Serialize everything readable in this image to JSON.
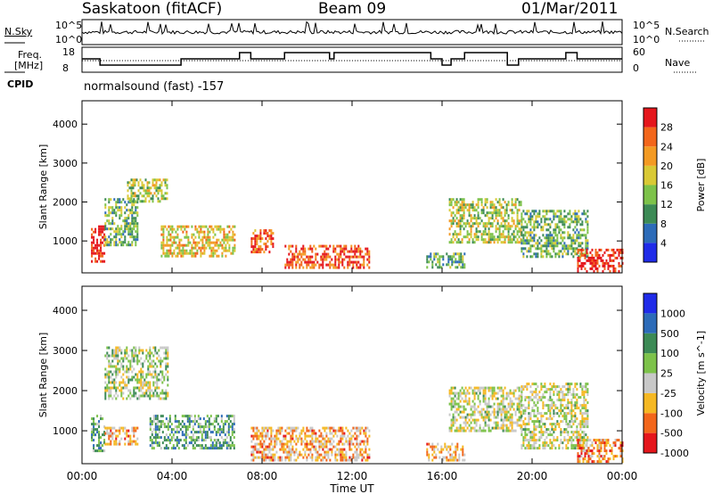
{
  "header": {
    "station": "Saskatoon (fitACF)",
    "beam": "Beam 09",
    "date": "01/Mar/2011"
  },
  "top_panels": {
    "nsky_label": "N.Sky",
    "nsearch_label": "N.Search",
    "noise_ticks": [
      "10^5",
      "10^0"
    ],
    "freq_label_line1": "Freq.",
    "freq_label_line2": "[MHz]",
    "freq_ticks": [
      "18",
      "8"
    ],
    "nave_label": "Nave",
    "nave_ticks": [
      "60",
      "0"
    ],
    "cpid_label": "CPID",
    "cpid_text": "normalsound (fast) -157"
  },
  "chart_data": [
    {
      "type": "heatmap",
      "title": "",
      "xlabel": "Time UT",
      "ylabel": "Slant Range [km]",
      "x_ticks": [
        "00:00",
        "04:00",
        "08:00",
        "12:00",
        "16:00",
        "20:00",
        "00:00"
      ],
      "xlim_hours": [
        0,
        24
      ],
      "ylim": [
        180,
        4600
      ],
      "y_ticks": [
        1000,
        2000,
        3000,
        4000
      ],
      "colorbar_label": "Power [dB]",
      "colorbar_ticks": [
        4,
        8,
        12,
        16,
        20,
        24,
        28
      ],
      "colorbar_range": [
        0,
        32
      ],
      "colors": [
        "#1f2be8",
        "#2c6bb8",
        "#3c8a55",
        "#7dc24a",
        "#d9c935",
        "#f39a23",
        "#f2661b",
        "#e5161c"
      ],
      "echo_regions": [
        {
          "t": [
            0.4,
            1.0
          ],
          "r": [
            500,
            1400
          ],
          "level": 0.95
        },
        {
          "t": [
            1.0,
            2.5
          ],
          "r": [
            900,
            2100
          ],
          "level": 0.4
        },
        {
          "t": [
            2.0,
            3.8
          ],
          "r": [
            2000,
            2600
          ],
          "level": 0.5
        },
        {
          "t": [
            3.5,
            6.8
          ],
          "r": [
            600,
            1400
          ],
          "level": 0.6
        },
        {
          "t": [
            7.5,
            8.5
          ],
          "r": [
            700,
            1300
          ],
          "level": 0.8
        },
        {
          "t": [
            9.0,
            12.8
          ],
          "r": [
            300,
            900
          ],
          "level": 0.85
        },
        {
          "t": [
            15.3,
            17.0
          ],
          "r": [
            300,
            700
          ],
          "level": 0.35
        },
        {
          "t": [
            16.3,
            19.5
          ],
          "r": [
            1000,
            2100
          ],
          "level": 0.5
        },
        {
          "t": [
            19.5,
            22.5
          ],
          "r": [
            600,
            1800
          ],
          "level": 0.4
        },
        {
          "t": [
            22.0,
            24.0
          ],
          "r": [
            250,
            800
          ],
          "level": 0.95
        }
      ]
    },
    {
      "type": "heatmap",
      "title": "",
      "xlabel": "Time UT",
      "ylabel": "Slant Range [km]",
      "x_ticks": [
        "00:00",
        "04:00",
        "08:00",
        "12:00",
        "16:00",
        "20:00",
        "00:00"
      ],
      "xlim_hours": [
        0,
        24
      ],
      "ylim": [
        180,
        4600
      ],
      "y_ticks": [
        1000,
        2000,
        3000,
        4000
      ],
      "colorbar_label": "Velocity [m s^-1]",
      "colorbar_ticks": [
        "1000",
        "500",
        "100",
        "25",
        "-25",
        "-100",
        "-500",
        "-1000"
      ],
      "colors": [
        "#1f2be8",
        "#2c6bb8",
        "#3c8a55",
        "#7dc24a",
        "#c8c8c8",
        "#f5b823",
        "#f2661b",
        "#e5161c"
      ],
      "echo_regions": [
        {
          "t": [
            0.4,
            1.0
          ],
          "r": [
            500,
            1400
          ],
          "level": 0.4
        },
        {
          "t": [
            1.0,
            3.8
          ],
          "r": [
            1800,
            3100
          ],
          "level": 0.5
        },
        {
          "t": [
            1.0,
            2.5
          ],
          "r": [
            700,
            1100
          ],
          "level": 0.7
        },
        {
          "t": [
            3.0,
            6.8
          ],
          "r": [
            600,
            1400
          ],
          "level": 0.35
        },
        {
          "t": [
            7.5,
            12.8
          ],
          "r": [
            300,
            1100
          ],
          "level": 0.7
        },
        {
          "t": [
            15.3,
            17.0
          ],
          "r": [
            300,
            700
          ],
          "level": 0.7
        },
        {
          "t": [
            16.3,
            19.5
          ],
          "r": [
            1000,
            2100
          ],
          "level": 0.55
        },
        {
          "t": [
            19.5,
            22.5
          ],
          "r": [
            600,
            2200
          ],
          "level": 0.55
        },
        {
          "t": [
            22.0,
            24.0
          ],
          "r": [
            250,
            800
          ],
          "level": 0.75
        }
      ]
    }
  ]
}
